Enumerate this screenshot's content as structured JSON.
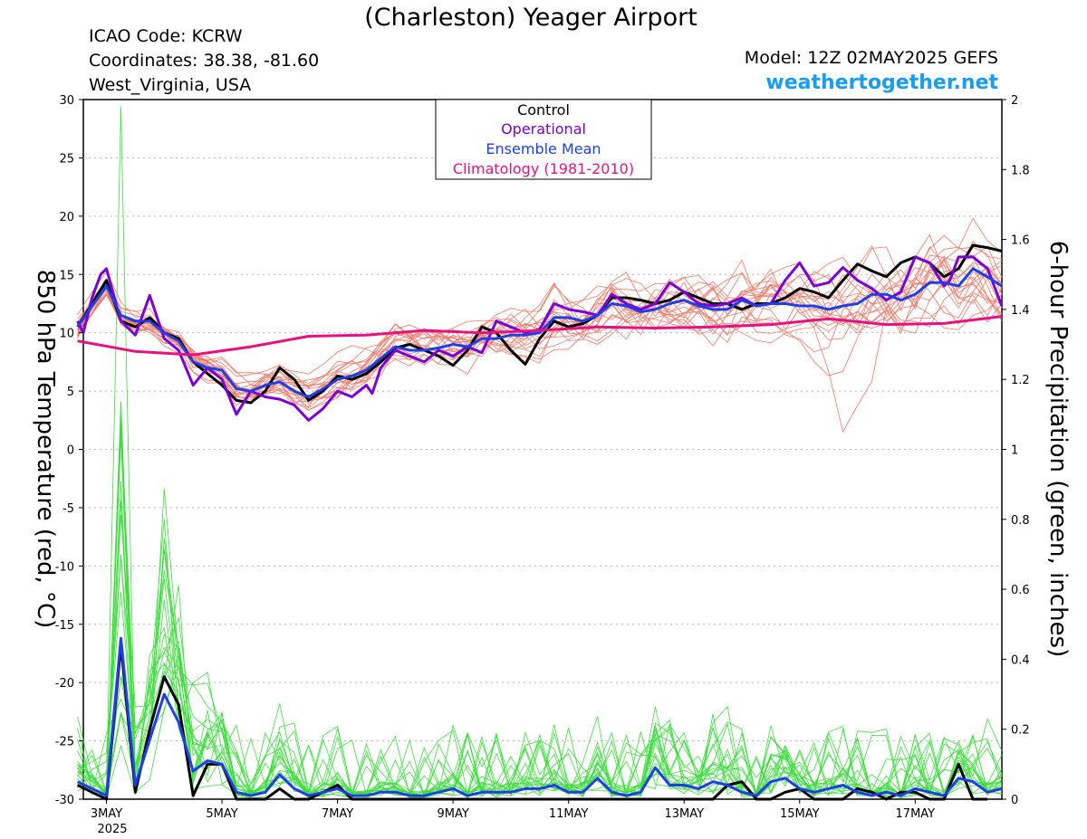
{
  "header": {
    "title": "(Charleston) Yeager Airport",
    "icao": "ICAO Code: KCRW",
    "coords": "Coordinates: 38.38, -81.60",
    "region": "West_Virginia, USA",
    "model": "Model: 12Z 02MAY2025 GEFS",
    "brand": "weathertogether.net"
  },
  "colors": {
    "control": "#000000",
    "operational": "#7a00d6",
    "mean": "#1f3fe6",
    "climatology": "#e8117f",
    "members_temp": "#f07a6a",
    "members_precip": "#3fdc3f",
    "brand": "#1a9cf0"
  },
  "chart_data": {
    "type": "line",
    "xlabel_year": "2025",
    "x_ticks": [
      "3MAY",
      "5MAY",
      "7MAY",
      "9MAY",
      "11MAY",
      "13MAY",
      "15MAY",
      "17MAY"
    ],
    "x_range_days": [
      2.6,
      18.5
    ],
    "ylabel_left": "850 hPa Temperature (red, °C)",
    "ylabel_right": "6-hour Precipitation (green, inches)",
    "ylim_left": [
      -30,
      30
    ],
    "yticks_left": [
      "30",
      "25",
      "20",
      "15",
      "10",
      "5",
      "0",
      "-5",
      "-10",
      "-15",
      "-20",
      "-25",
      "-30"
    ],
    "ylim_right": [
      0,
      2
    ],
    "yticks_right": [
      "2",
      "1.8",
      "1.6",
      "1.4",
      "1.2",
      "1",
      "0.8",
      "0.6",
      "0.4",
      "0.2",
      "0"
    ],
    "grid": true,
    "legend_position": "top-center",
    "legend": [
      "Control",
      "Operational",
      "Ensemble Mean",
      "Climatology (1981-2010)"
    ],
    "series_temp": [
      {
        "name": "Control",
        "x": [
          2.5,
          2.75,
          3.0,
          3.25,
          3.5,
          3.75,
          4.0,
          4.25,
          4.5,
          4.75,
          5.0,
          5.25,
          5.5,
          5.75,
          6.0,
          6.25,
          6.5,
          6.75,
          7.0,
          7.25,
          7.5,
          7.75,
          8.0,
          8.25,
          8.5,
          8.75,
          9.0,
          9.25,
          9.5,
          9.75,
          10.0,
          10.25,
          10.5,
          10.75,
          11.0,
          11.25,
          11.5,
          11.75,
          12.0,
          12.25,
          12.5,
          12.75,
          13.0,
          13.25,
          13.5,
          13.75,
          14.0,
          14.25,
          14.5,
          14.75,
          15.0,
          15.25,
          15.5,
          15.75,
          16.0,
          16.25,
          16.5,
          16.75,
          17.0,
          17.25,
          17.5,
          17.75,
          18.0,
          18.25,
          18.5
        ],
        "y": [
          10.5,
          12.5,
          14.5,
          11.0,
          10.5,
          11.3,
          10.0,
          9.5,
          7.5,
          6.5,
          5.5,
          4.2,
          4.0,
          5.0,
          7.0,
          6.0,
          4.2,
          5.0,
          6.3,
          6.0,
          6.5,
          7.5,
          8.7,
          9.0,
          8.5,
          8.0,
          7.2,
          8.5,
          10.5,
          10.0,
          8.5,
          7.3,
          9.5,
          11.0,
          10.5,
          10.8,
          11.5,
          13.0,
          13.0,
          12.8,
          12.5,
          12.8,
          13.5,
          13.0,
          12.5,
          12.5,
          12.0,
          12.5,
          12.5,
          13.0,
          13.8,
          13.5,
          13.0,
          14.5,
          15.9,
          15.3,
          14.8,
          16.0,
          16.5,
          16.0,
          14.8,
          15.5,
          17.5,
          17.3,
          17.0
        ]
      },
      {
        "name": "Operational",
        "x": [
          2.5,
          2.6,
          2.75,
          2.9,
          3.0,
          3.25,
          3.5,
          3.75,
          4.0,
          4.25,
          4.5,
          4.75,
          5.0,
          5.25,
          5.5,
          5.75,
          6.0,
          6.25,
          6.5,
          6.75,
          7.0,
          7.25,
          7.5,
          7.6,
          7.75,
          8.0,
          8.25,
          8.5,
          8.75,
          9.0,
          9.25,
          9.5,
          9.75,
          10.0,
          10.25,
          10.5,
          10.75,
          11.0,
          11.25,
          11.5,
          11.75,
          12.0,
          12.25,
          12.5,
          12.75,
          13.0,
          13.25,
          13.5,
          13.75,
          14.0,
          14.25,
          14.5,
          14.75,
          15.0,
          15.25,
          15.5,
          15.75,
          16.0,
          16.25,
          16.5,
          16.75,
          17.0,
          17.25,
          17.5,
          17.6,
          17.75,
          18.0,
          18.25,
          18.5
        ],
        "y": [
          11.0,
          10.0,
          13.0,
          15.0,
          15.5,
          11.0,
          9.8,
          13.2,
          9.5,
          8.5,
          5.5,
          7.0,
          6.0,
          3.0,
          5.0,
          4.5,
          4.3,
          3.8,
          2.5,
          3.5,
          5.0,
          4.5,
          5.5,
          4.8,
          7.0,
          8.5,
          8.0,
          7.5,
          8.5,
          8.0,
          8.8,
          8.3,
          11.0,
          10.5,
          10.0,
          10.3,
          12.5,
          12.0,
          11.8,
          11.5,
          13.3,
          12.5,
          12.0,
          12.5,
          14.3,
          13.5,
          12.5,
          12.3,
          12.5,
          13.0,
          12.3,
          12.5,
          14.5,
          16.0,
          14.0,
          14.3,
          15.6,
          14.5,
          13.8,
          12.8,
          13.5,
          16.5,
          16.0,
          14.0,
          14.5,
          16.5,
          16.5,
          15.5,
          12.3
        ]
      },
      {
        "name": "Ensemble Mean",
        "x": [
          2.5,
          2.75,
          3.0,
          3.25,
          3.5,
          3.75,
          4.0,
          4.25,
          4.5,
          4.75,
          5.0,
          5.25,
          5.5,
          5.75,
          6.0,
          6.25,
          6.5,
          6.75,
          7.0,
          7.25,
          7.5,
          7.75,
          8.0,
          8.25,
          8.5,
          8.75,
          9.0,
          9.25,
          9.5,
          9.75,
          10.0,
          10.25,
          10.5,
          10.75,
          11.0,
          11.25,
          11.5,
          11.75,
          12.0,
          12.25,
          12.5,
          12.75,
          13.0,
          13.25,
          13.5,
          13.75,
          14.0,
          14.25,
          14.5,
          14.75,
          15.0,
          15.25,
          15.5,
          15.75,
          16.0,
          16.25,
          16.5,
          16.75,
          17.0,
          17.25,
          17.5,
          17.75,
          18.0,
          18.25,
          18.5
        ],
        "y": [
          10.5,
          12.3,
          14.0,
          11.5,
          11.0,
          11.0,
          10.0,
          9.3,
          7.5,
          7.0,
          6.8,
          5.2,
          5.0,
          5.5,
          5.8,
          5.0,
          4.5,
          5.2,
          6.0,
          6.3,
          6.8,
          7.8,
          8.8,
          8.5,
          8.5,
          8.7,
          9.0,
          8.8,
          9.5,
          9.5,
          9.8,
          9.8,
          10.0,
          11.3,
          11.3,
          11.0,
          11.5,
          12.5,
          12.3,
          11.8,
          12.0,
          12.5,
          12.8,
          12.3,
          12.0,
          12.0,
          12.8,
          12.3,
          12.5,
          12.5,
          12.3,
          12.3,
          12.0,
          12.3,
          12.5,
          13.3,
          13.3,
          12.8,
          13.3,
          14.3,
          14.3,
          14.0,
          15.5,
          14.8,
          14.0
        ]
      },
      {
        "name": "Climatology (1981-2010)",
        "x": [
          2.5,
          3.5,
          4.5,
          5.5,
          6.5,
          7.5,
          8.5,
          9.5,
          10.5,
          11.5,
          12.5,
          13.5,
          14.5,
          15.5,
          16.5,
          17.5,
          18.5
        ],
        "y": [
          9.3,
          8.4,
          8.1,
          8.8,
          9.7,
          9.8,
          10.2,
          10.0,
          10.2,
          10.5,
          10.4,
          10.5,
          10.7,
          11.2,
          10.7,
          10.8,
          11.4
        ]
      }
    ],
    "series_precip": [
      {
        "name": "Control",
        "x": [
          2.5,
          2.75,
          3.0,
          3.25,
          3.5,
          3.75,
          4.0,
          4.25,
          4.5,
          4.75,
          5.0,
          5.25,
          5.5,
          5.75,
          6.0,
          6.25,
          6.5,
          6.75,
          7.0,
          7.25,
          7.5,
          7.75,
          8.0,
          8.25,
          8.5,
          8.75,
          9.0,
          9.25,
          9.5,
          9.75,
          10.0,
          10.25,
          10.5,
          10.75,
          11.0,
          11.25,
          11.5,
          11.75,
          12.0,
          12.25,
          12.5,
          12.75,
          13.0,
          13.25,
          13.5,
          13.75,
          14.0,
          14.25,
          14.5,
          14.75,
          15.0,
          15.25,
          15.5,
          15.75,
          16.0,
          16.25,
          16.5,
          16.75,
          17.0,
          17.25,
          17.5,
          17.75,
          18.0,
          18.25
        ],
        "y": [
          0.04,
          0.02,
          0.0,
          0.44,
          0.02,
          0.2,
          0.35,
          0.27,
          0.01,
          0.1,
          0.1,
          0.0,
          0.0,
          0.0,
          0.03,
          0.0,
          0.0,
          0.02,
          0.04,
          0.0,
          0.0,
          0.0,
          0.0,
          0.0,
          0.0,
          0.0,
          0.0,
          0.0,
          0.0,
          0.0,
          0.0,
          0.0,
          0.0,
          0.0,
          0.0,
          0.0,
          0.0,
          0.0,
          0.0,
          0.0,
          0.0,
          0.0,
          0.0,
          0.0,
          0.0,
          0.04,
          0.05,
          0.0,
          0.0,
          0.02,
          0.03,
          0.0,
          0.0,
          0.0,
          0.03,
          0.02,
          0.0,
          0.02,
          0.02,
          0.0,
          0.0,
          0.1,
          0.0,
          0.0
        ]
      },
      {
        "name": "Ensemble Mean",
        "x": [
          2.5,
          2.75,
          3.0,
          3.25,
          3.5,
          3.75,
          4.0,
          4.25,
          4.5,
          4.75,
          5.0,
          5.25,
          5.5,
          5.75,
          6.0,
          6.25,
          6.5,
          6.75,
          7.0,
          7.25,
          7.5,
          7.75,
          8.0,
          8.25,
          8.5,
          8.75,
          9.0,
          9.25,
          9.5,
          9.75,
          10.0,
          10.25,
          10.5,
          10.75,
          11.0,
          11.25,
          11.5,
          11.75,
          12.0,
          12.25,
          12.5,
          12.75,
          13.0,
          13.25,
          13.5,
          13.75,
          14.0,
          14.25,
          14.5,
          14.75,
          15.0,
          15.25,
          15.5,
          15.75,
          16.0,
          16.25,
          16.5,
          16.75,
          17.0,
          17.25,
          17.5,
          17.75,
          18.0,
          18.25,
          18.5
        ],
        "y": [
          0.05,
          0.03,
          0.01,
          0.46,
          0.04,
          0.17,
          0.3,
          0.22,
          0.08,
          0.11,
          0.1,
          0.02,
          0.01,
          0.02,
          0.07,
          0.03,
          0.01,
          0.02,
          0.03,
          0.01,
          0.01,
          0.02,
          0.02,
          0.01,
          0.01,
          0.02,
          0.03,
          0.01,
          0.02,
          0.02,
          0.02,
          0.03,
          0.03,
          0.04,
          0.02,
          0.02,
          0.06,
          0.02,
          0.01,
          0.02,
          0.09,
          0.04,
          0.04,
          0.03,
          0.05,
          0.04,
          0.02,
          0.01,
          0.05,
          0.06,
          0.03,
          0.02,
          0.03,
          0.04,
          0.02,
          0.01,
          0.02,
          0.01,
          0.03,
          0.02,
          0.01,
          0.06,
          0.05,
          0.02,
          0.03
        ]
      }
    ]
  }
}
